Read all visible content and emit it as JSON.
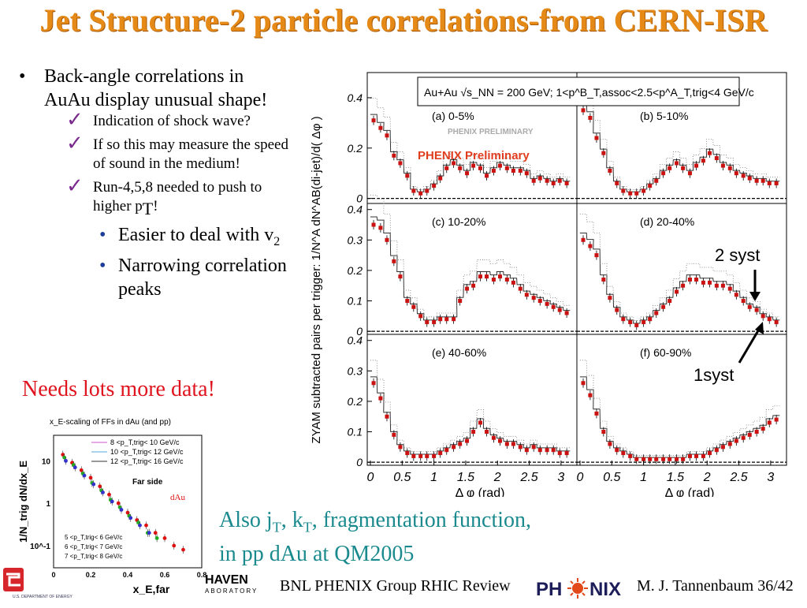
{
  "slide": {
    "title": "Jet Structure-2 particle correlations-from CERN-ISR",
    "bullet_main": "Back-angle correlations in AuAu display unusual shape!",
    "checks": [
      "Indication of shock wave?",
      "If so this may measure the speed of sound in the medium!",
      "Run-4,5,8 needed to push to higher p"
    ],
    "check3_sub": "T",
    "check3_end": "!",
    "sub_bullets": [
      {
        "text": "Easier to deal with v",
        "sub": "2"
      },
      {
        "text": "Narrowing correlation peaks",
        "sub": ""
      }
    ],
    "needs_more": "Needs lots more data!",
    "also_line1_a": "Also j",
    "also_line1_b": ", k",
    "also_line1_c": ", fragmentation function,",
    "also_sub_T": "T",
    "also_line2": "in pp dAu at QM2005",
    "footer_left": "BNL PHENIX Group  RHIC Review",
    "footer_right": "M. J. Tannenbaum   36/42",
    "bnl_logo_text": "HAVEN",
    "bnl_logo_small": "ABORATORY",
    "phenix_logo": "PH  ENIX",
    "doe_text": "U.S. DEPARTMENT OF ENERGY"
  },
  "colors": {
    "title": "#e68a17",
    "needs": "#e0141e",
    "also": "#1a8a8e",
    "check": "#7a2a8c",
    "sub_bullet": "#1e3c9a",
    "data_marker": "#cc1111",
    "preliminary": "#e03c1e"
  },
  "chart_data": [
    {
      "type": "scatter",
      "ylabel": "ZYAM subtracted pairs per trigger: 1/N^A dN^AB(di-jet)/d( Δφ )",
      "xlabel": "Δ φ (rad)",
      "legend_header": "Au+Au √s_NN = 200 GeV;  1<p^B_T,assoc<2.5<p^A_T,trig<4 GeV/c",
      "watermark": "PHENIX PRELIMINARY",
      "preliminary_label": "PHENIX Preliminary",
      "x_ticks": [
        "0",
        "0.5",
        "1",
        "1.5",
        "2",
        "2.5",
        "3"
      ],
      "xlim": [
        0,
        3.2
      ],
      "annotations": [
        "2 syst",
        "1syst"
      ],
      "panels": [
        {
          "label": "(a) 0-5%",
          "ylim": [
            -0.02,
            0.5
          ],
          "y_ticks": [
            "0",
            "0.2",
            "0.4"
          ],
          "x": [
            0.05,
            0.16,
            0.26,
            0.37,
            0.47,
            0.58,
            0.68,
            0.79,
            0.89,
            1.0,
            1.1,
            1.2,
            1.31,
            1.41,
            1.52,
            1.62,
            1.73,
            1.83,
            1.94,
            2.04,
            2.15,
            2.25,
            2.36,
            2.46,
            2.57,
            2.67,
            2.78,
            2.88,
            2.98,
            3.09
          ],
          "y": [
            0.31,
            0.28,
            0.25,
            0.17,
            0.14,
            0.09,
            0.03,
            0.02,
            0.03,
            0.05,
            0.08,
            0.12,
            0.14,
            0.12,
            0.1,
            0.13,
            0.12,
            0.09,
            0.11,
            0.13,
            0.12,
            0.11,
            0.11,
            0.1,
            0.07,
            0.08,
            0.07,
            0.06,
            0.07,
            0.06
          ]
        },
        {
          "label": "(b) 5-10%",
          "ylim": [
            -0.02,
            0.5
          ],
          "y_ticks": [],
          "x": [
            0.05,
            0.16,
            0.26,
            0.37,
            0.47,
            0.58,
            0.68,
            0.79,
            0.89,
            1.0,
            1.1,
            1.2,
            1.31,
            1.41,
            1.52,
            1.62,
            1.73,
            1.83,
            1.94,
            2.04,
            2.15,
            2.25,
            2.36,
            2.46,
            2.57,
            2.67,
            2.78,
            2.88,
            2.98,
            3.09
          ],
          "y": [
            0.35,
            0.32,
            0.24,
            0.18,
            0.11,
            0.06,
            0.03,
            0.02,
            0.02,
            0.03,
            0.05,
            0.07,
            0.1,
            0.12,
            0.14,
            0.12,
            0.1,
            0.13,
            0.15,
            0.18,
            0.16,
            0.13,
            0.12,
            0.1,
            0.09,
            0.08,
            0.07,
            0.07,
            0.06,
            0.06
          ]
        },
        {
          "label": "(c) 10-20%",
          "ylim": [
            -0.01,
            0.42
          ],
          "y_ticks": [
            "0",
            "0.1",
            "0.2",
            "0.3",
            "0.4"
          ],
          "x": [
            0.05,
            0.16,
            0.26,
            0.37,
            0.47,
            0.58,
            0.68,
            0.79,
            0.89,
            1.0,
            1.1,
            1.2,
            1.31,
            1.41,
            1.52,
            1.62,
            1.73,
            1.83,
            1.94,
            2.04,
            2.15,
            2.25,
            2.36,
            2.46,
            2.57,
            2.67,
            2.78,
            2.88,
            2.98,
            3.09
          ],
          "y": [
            0.35,
            0.34,
            0.3,
            0.23,
            0.18,
            0.1,
            0.08,
            0.05,
            0.03,
            0.03,
            0.04,
            0.04,
            0.04,
            0.1,
            0.14,
            0.15,
            0.18,
            0.18,
            0.17,
            0.18,
            0.17,
            0.16,
            0.14,
            0.12,
            0.11,
            0.1,
            0.09,
            0.08,
            0.07,
            0.06
          ]
        },
        {
          "label": "(d) 20-40%",
          "ylim": [
            -0.01,
            0.42
          ],
          "y_ticks": [],
          "x": [
            0.05,
            0.16,
            0.26,
            0.37,
            0.47,
            0.58,
            0.68,
            0.79,
            0.89,
            1.0,
            1.1,
            1.2,
            1.31,
            1.41,
            1.52,
            1.62,
            1.73,
            1.83,
            1.94,
            2.04,
            2.15,
            2.25,
            2.36,
            2.46,
            2.57,
            2.67,
            2.78,
            2.88,
            2.98,
            3.09
          ],
          "y": [
            0.3,
            0.28,
            0.25,
            0.17,
            0.11,
            0.07,
            0.04,
            0.03,
            0.02,
            0.03,
            0.04,
            0.06,
            0.08,
            0.1,
            0.13,
            0.15,
            0.17,
            0.17,
            0.16,
            0.16,
            0.15,
            0.15,
            0.14,
            0.12,
            0.1,
            0.08,
            0.07,
            0.05,
            0.04,
            0.03
          ]
        },
        {
          "label": "(e) 40-60%",
          "ylim": [
            -0.01,
            0.42
          ],
          "y_ticks": [
            "0",
            "0.1",
            "0.2",
            "0.3",
            "0.4"
          ],
          "x": [
            0.05,
            0.16,
            0.26,
            0.37,
            0.47,
            0.58,
            0.68,
            0.79,
            0.89,
            1.0,
            1.1,
            1.2,
            1.31,
            1.41,
            1.52,
            1.62,
            1.73,
            1.83,
            1.94,
            2.04,
            2.15,
            2.25,
            2.36,
            2.46,
            2.57,
            2.67,
            2.78,
            2.88,
            2.98,
            3.09
          ],
          "y": [
            0.26,
            0.21,
            0.15,
            0.09,
            0.05,
            0.03,
            0.02,
            0.02,
            0.02,
            0.02,
            0.03,
            0.04,
            0.05,
            0.06,
            0.07,
            0.1,
            0.13,
            0.1,
            0.08,
            0.07,
            0.06,
            0.06,
            0.05,
            0.04,
            0.05,
            0.04,
            0.04,
            0.04,
            0.03,
            0.03
          ]
        },
        {
          "label": "(f) 60-90%",
          "ylim": [
            -0.01,
            0.42
          ],
          "y_ticks": [],
          "x": [
            0.05,
            0.16,
            0.26,
            0.37,
            0.47,
            0.58,
            0.68,
            0.79,
            0.89,
            1.0,
            1.1,
            1.2,
            1.31,
            1.41,
            1.52,
            1.62,
            1.73,
            1.83,
            1.94,
            2.04,
            2.15,
            2.25,
            2.36,
            2.46,
            2.57,
            2.67,
            2.78,
            2.88,
            2.98,
            3.09
          ],
          "y": [
            0.26,
            0.22,
            0.16,
            0.1,
            0.06,
            0.04,
            0.03,
            0.02,
            0.01,
            0.01,
            0.01,
            0.01,
            0.01,
            0.01,
            0.01,
            0.01,
            0.02,
            0.02,
            0.02,
            0.03,
            0.04,
            0.05,
            0.06,
            0.07,
            0.08,
            0.09,
            0.1,
            0.11,
            0.13,
            0.14
          ]
        }
      ]
    },
    {
      "type": "scatter",
      "title": "x_E-scaling of FFs in dAu (and pp)",
      "xlabel": "x_E,far",
      "ylabel": "1/N_trig dN/dx_E",
      "x_ticks": [
        "0",
        "0.2",
        "0.4",
        "0.6",
        "0.8"
      ],
      "y_ticks": [
        "10",
        "1",
        "10^-1"
      ],
      "xlim": [
        0,
        0.8
      ],
      "ylim_log": [
        0.03,
        40
      ],
      "annotation": "Far side",
      "dAu_label": "dAu",
      "legend_top": [
        "8 <p_T,trig< 10 GeV/c",
        "10 <p_T,trig< 12 GeV/c",
        "12 <p_T,trig< 16 GeV/c"
      ],
      "legend_bottom": [
        "5 <p_T,trig< 6 GeV/c",
        "6 <p_T,trig< 7 GeV/c",
        "7 <p_T,trig< 8 GeV/c"
      ],
      "series": [
        {
          "x": [
            0.05,
            0.1,
            0.15,
            0.2,
            0.25,
            0.3,
            0.35,
            0.4,
            0.45,
            0.5,
            0.55,
            0.6,
            0.65,
            0.7
          ],
          "y": [
            14,
            9,
            6,
            4,
            2.5,
            1.6,
            1.0,
            0.6,
            0.4,
            0.3,
            0.2,
            0.15,
            0.1,
            0.08
          ]
        },
        {
          "x": [
            0.05,
            0.1,
            0.15,
            0.2,
            0.25,
            0.3,
            0.35,
            0.4,
            0.45,
            0.5,
            0.55
          ],
          "y": [
            12,
            8,
            5,
            3,
            2,
            1.2,
            0.8,
            0.5,
            0.35,
            0.2,
            0.15
          ]
        },
        {
          "x": [
            0.05,
            0.1,
            0.15,
            0.2,
            0.25,
            0.3,
            0.35,
            0.4,
            0.45,
            0.5
          ],
          "y": [
            10,
            7,
            4.5,
            2.8,
            1.8,
            1.1,
            0.7,
            0.45,
            0.3,
            0.2
          ]
        }
      ]
    }
  ]
}
